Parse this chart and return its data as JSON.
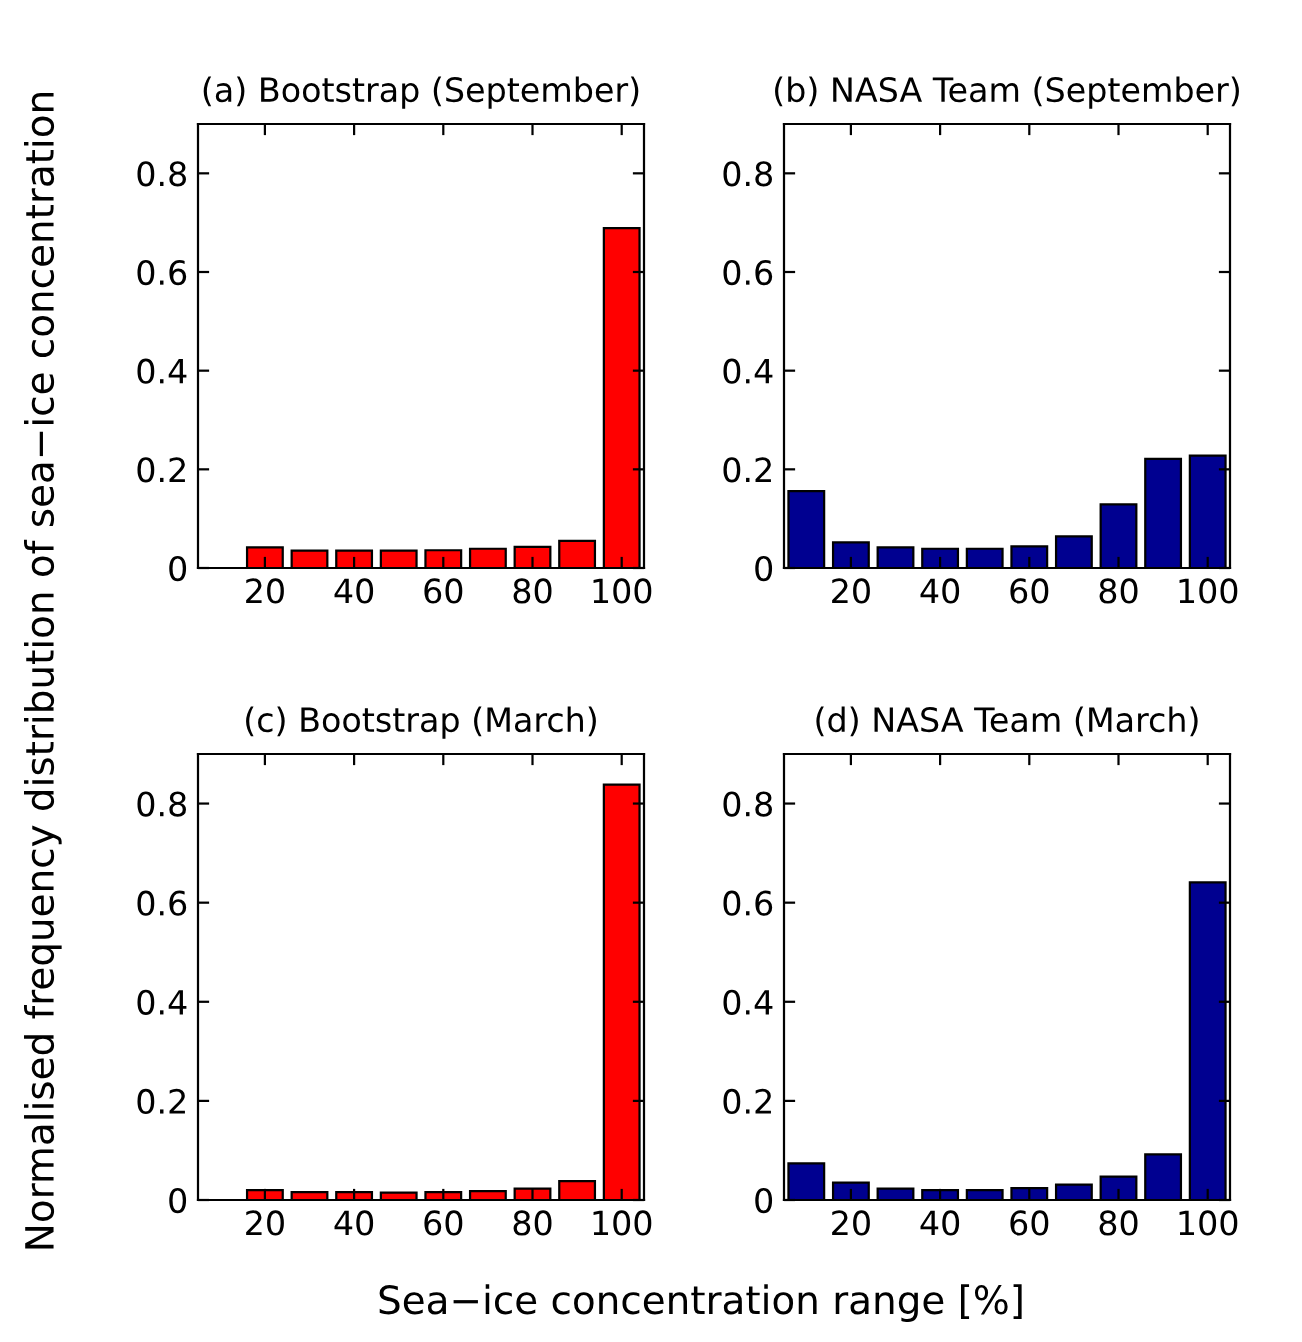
{
  "chart_data": [
    {
      "type": "bar",
      "title": "(a) Bootstrap (September)",
      "ylabel": "Normalised frequency distribution of sea−ice concentration",
      "x": [
        10,
        20,
        30,
        40,
        50,
        60,
        70,
        80,
        90,
        100
      ],
      "values": [
        0,
        0.042,
        0.035,
        0.035,
        0.035,
        0.036,
        0.039,
        0.043,
        0.055,
        0.689
      ],
      "color": "#ff0000",
      "xlim": [
        5,
        105
      ],
      "xticks": [
        20,
        40,
        60,
        80,
        100
      ],
      "ylim": [
        0,
        0.9
      ],
      "yticks": [
        0,
        0.2,
        0.4,
        0.6,
        0.8
      ],
      "grid": false,
      "legend": false
    },
    {
      "type": "bar",
      "title": "(b) NASA Team (September)",
      "x": [
        10,
        20,
        30,
        40,
        50,
        60,
        70,
        80,
        90,
        100
      ],
      "values": [
        0.156,
        0.052,
        0.042,
        0.039,
        0.039,
        0.044,
        0.064,
        0.129,
        0.221,
        0.228
      ],
      "color": "#000090",
      "xlim": [
        5,
        105
      ],
      "xticks": [
        20,
        40,
        60,
        80,
        100
      ],
      "ylim": [
        0,
        0.9
      ],
      "yticks": [
        0,
        0.2,
        0.4,
        0.6,
        0.8
      ],
      "grid": false,
      "legend": false
    },
    {
      "type": "bar",
      "title": "(c) Bootstrap (March)",
      "xlabel": "Sea−ice concentration range [%]",
      "x": [
        10,
        20,
        30,
        40,
        50,
        60,
        70,
        80,
        90,
        100
      ],
      "values": [
        0,
        0.02,
        0.016,
        0.016,
        0.015,
        0.016,
        0.018,
        0.023,
        0.038,
        0.838
      ],
      "color": "#ff0000",
      "xlim": [
        5,
        105
      ],
      "xticks": [
        20,
        40,
        60,
        80,
        100
      ],
      "ylim": [
        0,
        0.9
      ],
      "yticks": [
        0,
        0.2,
        0.4,
        0.6,
        0.8
      ],
      "grid": false,
      "legend": false
    },
    {
      "type": "bar",
      "title": "(d) NASA Team (March)",
      "x": [
        10,
        20,
        30,
        40,
        50,
        60,
        70,
        80,
        90,
        100
      ],
      "values": [
        0.074,
        0.035,
        0.023,
        0.02,
        0.02,
        0.024,
        0.031,
        0.047,
        0.092,
        0.641
      ],
      "color": "#000090",
      "xlim": [
        5,
        105
      ],
      "xticks": [
        20,
        40,
        60,
        80,
        100
      ],
      "ylim": [
        0,
        0.9
      ],
      "yticks": [
        0,
        0.2,
        0.4,
        0.6,
        0.8
      ],
      "grid": false,
      "legend": false
    }
  ]
}
